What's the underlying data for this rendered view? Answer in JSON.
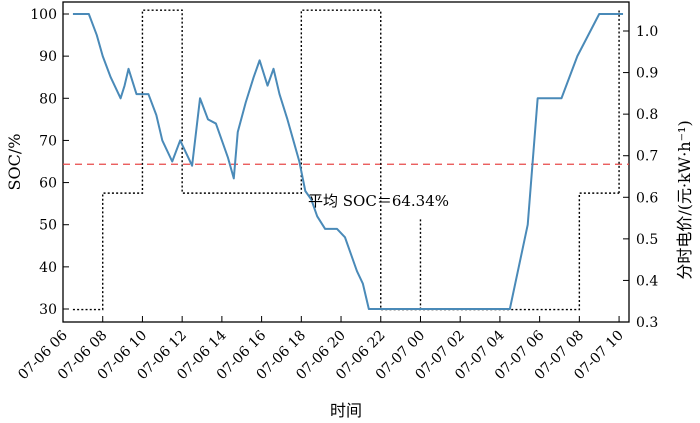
{
  "chart_data": {
    "type": "line",
    "xlabel": "时间",
    "ylabel_left": "SOC/%",
    "ylabel_right": "分时电价/(元·kW·h⁻¹)",
    "x_unit": "hour",
    "x_range": [
      6.0,
      34.5
    ],
    "xtick_values": [
      6,
      8,
      10,
      12,
      14,
      16,
      18,
      20,
      22,
      24,
      26,
      28,
      30,
      32,
      34
    ],
    "xtick_labels": [
      "07-06 06",
      "07-06 08",
      "07-06 10",
      "07-06 12",
      "07-06 14",
      "07-06 16",
      "07-06 18",
      "07-06 20",
      "07-06 22",
      "07-07 00",
      "07-07 02",
      "07-07 04",
      "07-07 06",
      "07-07 08",
      "07-07 10"
    ],
    "ylim_left": [
      27,
      102
    ],
    "ylim_right": [
      0.3,
      1.06
    ],
    "yticks_left": [
      30,
      40,
      50,
      60,
      70,
      80,
      90,
      100
    ],
    "yticks_right": [
      0.3,
      0.4,
      0.5,
      0.6,
      0.7,
      0.8,
      0.9,
      1.0
    ],
    "yticks_right_labels": [
      "0.3",
      "0.4",
      "0.5",
      "0.6",
      "0.7",
      "0.8",
      "0.9",
      "1.0"
    ],
    "series": [
      {
        "name": "SOC",
        "axis": "left",
        "color": "#4a8ab8",
        "style": "solid",
        "x": [
          6.5,
          7.3,
          7.7,
          8.0,
          8.4,
          8.9,
          9.1,
          9.3,
          9.5,
          9.7,
          10.0,
          10.3,
          10.7,
          11.0,
          11.5,
          11.9,
          12.1,
          12.5,
          12.9,
          13.3,
          13.7,
          14.0,
          14.3,
          14.6,
          14.8,
          15.2,
          15.6,
          15.9,
          16.3,
          16.6,
          16.9,
          17.3,
          17.6,
          17.9,
          18.2,
          18.5,
          18.8,
          19.2,
          19.5,
          19.8,
          20.2,
          20.5,
          20.8,
          21.1,
          21.4,
          21.7,
          22.0,
          24.0,
          28.5,
          29.4,
          29.9,
          30.3,
          31.1,
          31.9,
          33.0,
          34.2
        ],
        "y": [
          100,
          100,
          95,
          90,
          85,
          80,
          83,
          87,
          84,
          81,
          81,
          81,
          76,
          70,
          65,
          70,
          68,
          64,
          80,
          75,
          74,
          70,
          66,
          61,
          72,
          79,
          85,
          89,
          83,
          87,
          81,
          75,
          70,
          65,
          58,
          56,
          52,
          49,
          49,
          49,
          47,
          43,
          39,
          36,
          30,
          30,
          30,
          30,
          30,
          50,
          80,
          80,
          80,
          90,
          100,
          100
        ]
      },
      {
        "name": "分时电价",
        "axis": "right",
        "color": "#000000",
        "style": "dotted",
        "x": [
          6.5,
          8,
          8,
          10,
          10,
          12,
          12,
          18,
          18,
          22,
          22,
          30,
          30,
          32,
          32,
          34.0
        ],
        "y": [
          0.33,
          0.33,
          0.61,
          0.61,
          1.05,
          1.05,
          0.61,
          0.61,
          1.05,
          1.05,
          0.33,
          0.33,
          0.33,
          0.33,
          0.61,
          0.61
        ]
      }
    ],
    "extra_dotted_segments": [
      {
        "x": [
          34.0,
          34.0
        ],
        "y": [
          0.61,
          1.05
        ],
        "axis": "right"
      },
      {
        "x": [
          24.0,
          24.0
        ],
        "y": [
          0.33,
          0.55
        ],
        "axis": "right"
      },
      {
        "x": [
          22.0,
          22.0
        ],
        "y": [
          0.71,
          0.71
        ],
        "axis": "right"
      }
    ],
    "mean_line": {
      "value": 64.34,
      "axis": "left",
      "color": "#e84a4a",
      "style": "dashed"
    },
    "annotation": "平均 SOC＝64.34%",
    "grid": false,
    "legend": "none"
  }
}
